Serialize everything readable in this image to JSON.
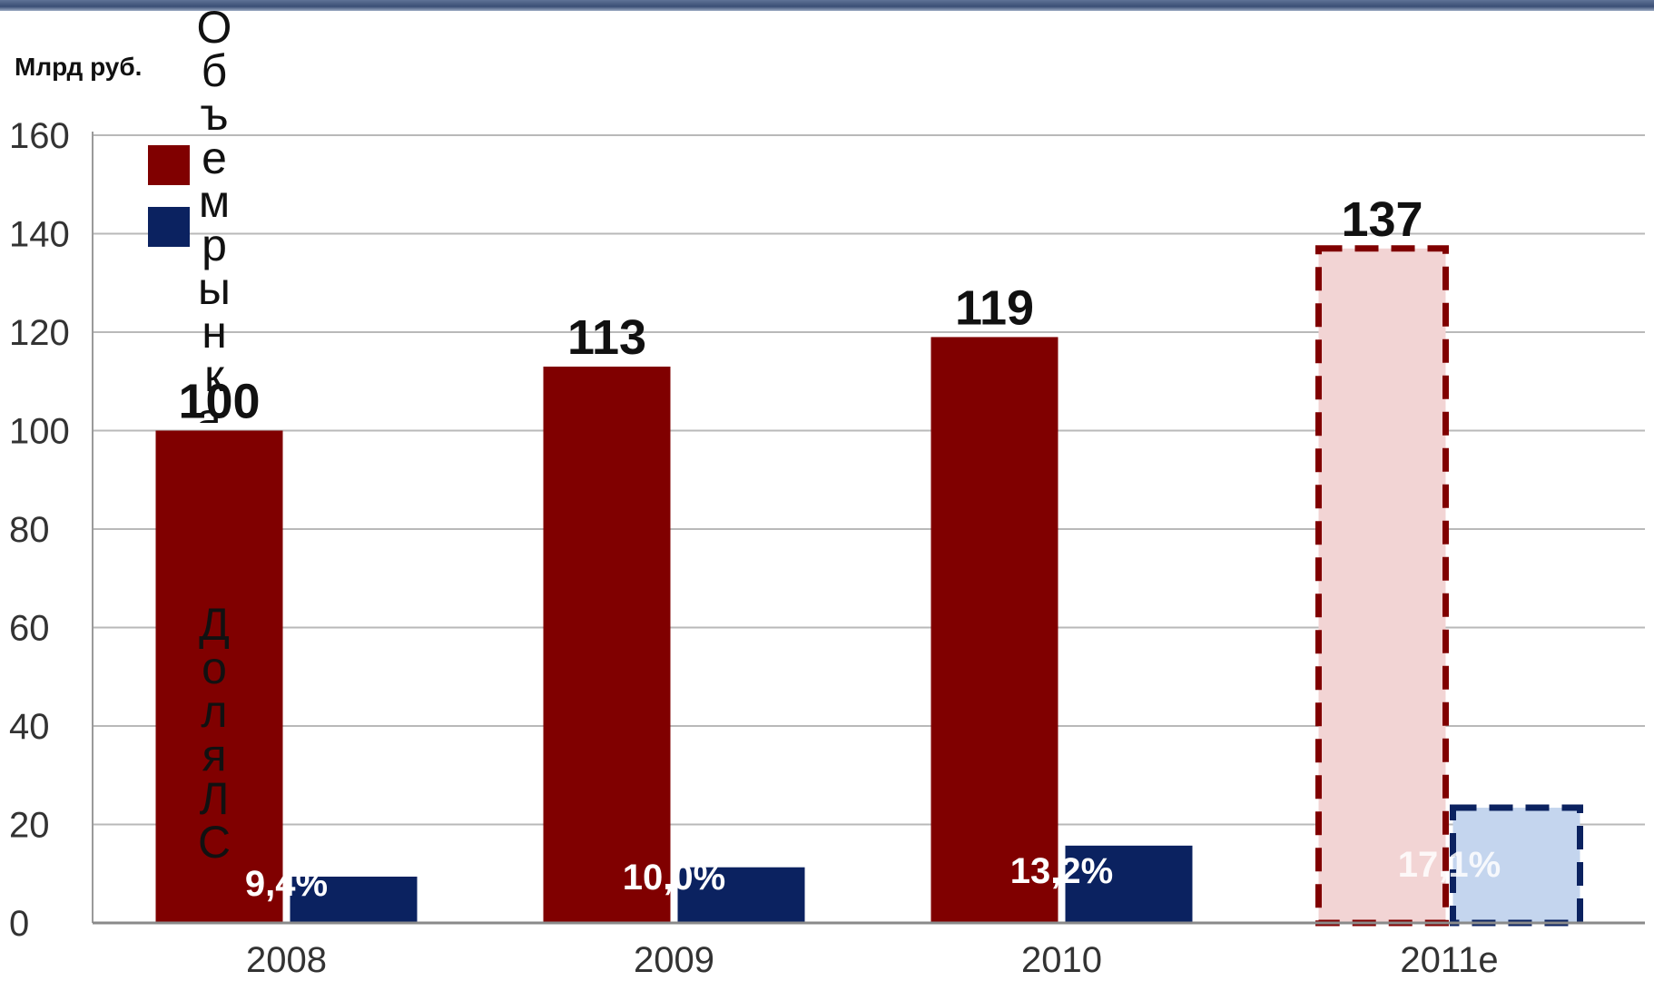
{
  "unit_label": "Млрд руб.",
  "chart_data": {
    "type": "bar",
    "categories": [
      "2008",
      "2009",
      "2010",
      "2011e"
    ],
    "series": [
      {
        "name": "Объем рынка, млрд руб.",
        "values": [
          100,
          113,
          119,
          137
        ],
        "color": "#800000",
        "forecast_fill": "#f2d4d4"
      },
      {
        "name": "Доля ЛС",
        "values": [
          9.4,
          11.3,
          15.7,
          23.4
        ],
        "color": "#0b2260",
        "forecast_fill": "#c4d5ee"
      }
    ],
    "value_labels": [
      "100",
      "113",
      "119",
      "137"
    ],
    "percent_labels": [
      "9,4%",
      "10,0%",
      "13,2%",
      "17,1%"
    ],
    "forecast_category": "2011e",
    "ylim": [
      0,
      160
    ],
    "yticks": [
      0,
      20,
      40,
      60,
      80,
      100,
      120,
      140,
      160
    ],
    "grid": true,
    "legend_position": "top-left",
    "xlabel": "",
    "ylabel": "Млрд руб."
  }
}
